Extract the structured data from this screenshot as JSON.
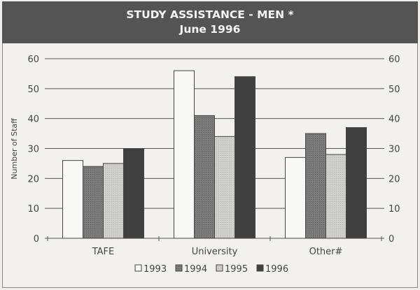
{
  "chart_data": {
    "type": "bar",
    "title": "STUDY ASSISTANCE - MEN *",
    "subtitle": "June 1996",
    "ylabel": "Number of Staff",
    "xlabel": "",
    "ylim": [
      0,
      60
    ],
    "yticks": [
      0,
      10,
      20,
      30,
      40,
      50,
      60
    ],
    "grid": true,
    "legend_position": "bottom",
    "categories": [
      "TAFE",
      "University",
      "Other#"
    ],
    "series": [
      {
        "name": "1993",
        "values": [
          26,
          56,
          27
        ],
        "color": "#f8f8f6"
      },
      {
        "name": "1994",
        "values": [
          24,
          41,
          35
        ],
        "color": "#7c7c7c"
      },
      {
        "name": "1995",
        "values": [
          25,
          34,
          28
        ],
        "color": "#cfcfcd"
      },
      {
        "name": "1996",
        "values": [
          30,
          54,
          37
        ],
        "color": "#404040"
      }
    ]
  }
}
